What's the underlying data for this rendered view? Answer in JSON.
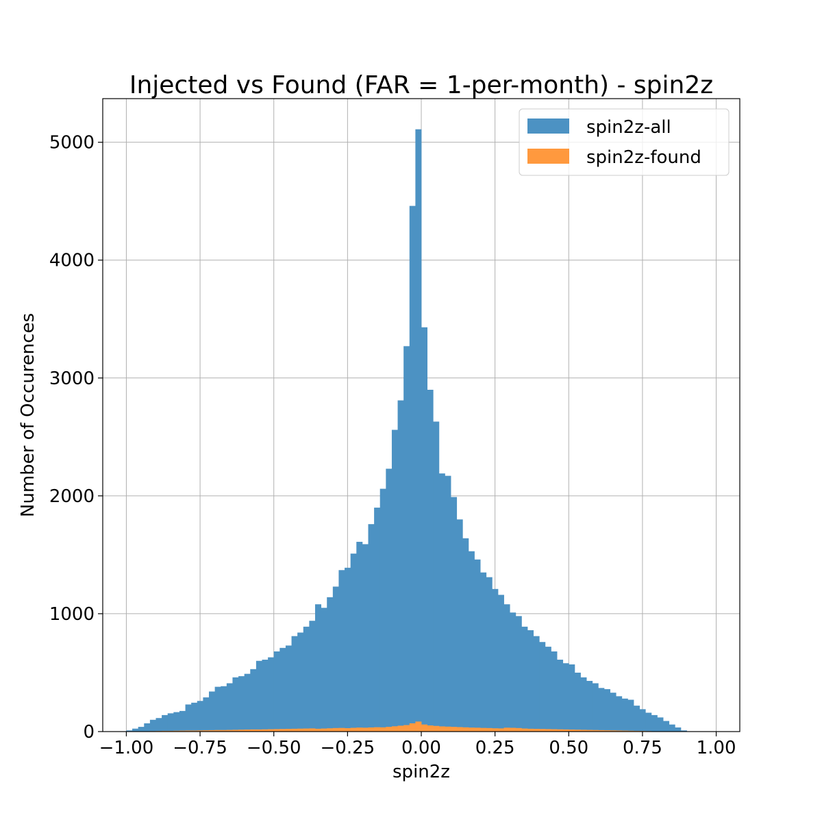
{
  "chart_data": {
    "type": "bar",
    "title": "Injected vs Found (FAR = 1-per-month) - spin2z",
    "xlabel": "spin2z",
    "ylabel": "Number of Occurences",
    "xlim": [
      -1.08,
      1.08
    ],
    "ylim": [
      0,
      5370
    ],
    "bin_start": -1.0,
    "bin_width": 0.02,
    "grid": true,
    "legend_position": "upper right",
    "xticks": [
      -1.0,
      -0.75,
      -0.5,
      -0.25,
      0.0,
      0.25,
      0.5,
      0.75,
      1.0
    ],
    "xtick_labels": [
      "−1.00",
      "−0.75",
      "−0.50",
      "−0.25",
      "0.00",
      "0.25",
      "0.50",
      "0.75",
      "1.00"
    ],
    "yticks": [
      0,
      1000,
      2000,
      3000,
      4000,
      5000
    ],
    "ytick_labels": [
      "0",
      "1000",
      "2000",
      "3000",
      "4000",
      "5000"
    ],
    "series": [
      {
        "name": "spin2z-all",
        "color": "#4c92c3",
        "values": [
          10,
          25,
          40,
          70,
          100,
          115,
          140,
          155,
          165,
          175,
          230,
          245,
          260,
          290,
          340,
          380,
          385,
          410,
          460,
          470,
          490,
          530,
          600,
          610,
          630,
          680,
          710,
          730,
          810,
          840,
          890,
          940,
          1080,
          1050,
          1140,
          1230,
          1370,
          1390,
          1510,
          1610,
          1590,
          1760,
          1900,
          2060,
          2230,
          2560,
          2810,
          3270,
          4460,
          5110,
          3430,
          2900,
          2630,
          2190,
          2170,
          1990,
          1800,
          1640,
          1530,
          1460,
          1350,
          1310,
          1210,
          1160,
          1080,
          1010,
          980,
          890,
          860,
          810,
          760,
          720,
          680,
          610,
          580,
          570,
          500,
          460,
          430,
          410,
          370,
          360,
          330,
          300,
          280,
          270,
          220,
          190,
          160,
          140,
          120,
          90,
          60,
          35,
          10
        ]
      },
      {
        "name": "spin2z-found",
        "color": "#ff993e",
        "values": [
          0,
          1,
          2,
          3,
          4,
          5,
          6,
          6,
          7,
          8,
          9,
          9,
          10,
          11,
          12,
          13,
          13,
          14,
          15,
          16,
          17,
          18,
          18,
          19,
          20,
          21,
          22,
          23,
          24,
          25,
          26,
          27,
          24,
          26,
          28,
          30,
          31,
          29,
          32,
          34,
          33,
          35,
          37,
          36,
          40,
          45,
          50,
          55,
          70,
          85,
          60,
          52,
          48,
          44,
          42,
          40,
          38,
          36,
          34,
          33,
          31,
          30,
          28,
          27,
          33,
          32,
          30,
          26,
          24,
          23,
          22,
          21,
          20,
          19,
          18,
          17,
          16,
          15,
          14,
          13,
          12,
          11,
          10,
          9,
          8,
          7,
          6,
          5,
          4,
          3,
          3,
          2,
          2,
          1,
          0
        ]
      }
    ]
  }
}
